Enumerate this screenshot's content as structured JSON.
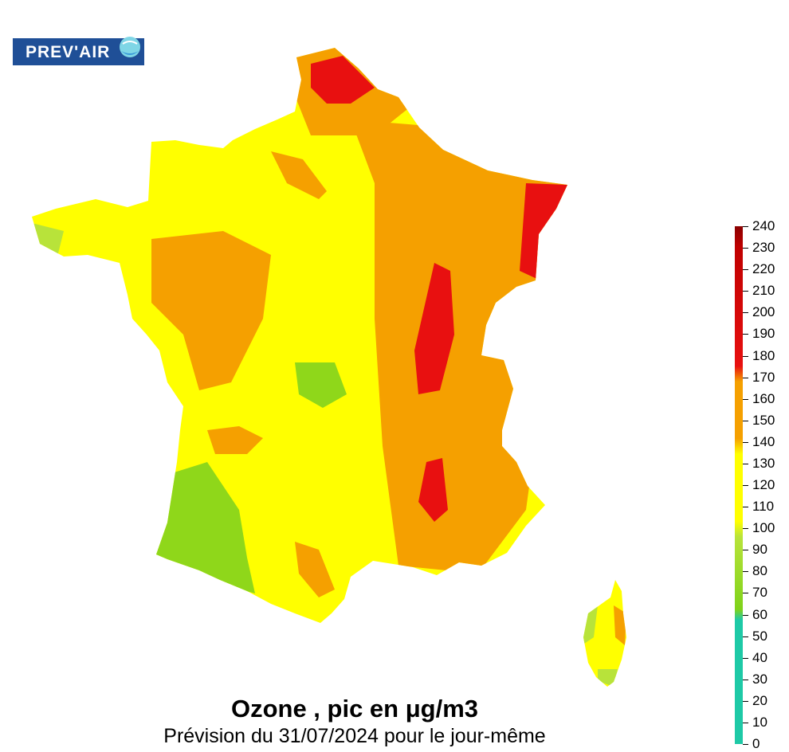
{
  "logo": {
    "text": "PREV'AIR"
  },
  "title": "Ozone , pic en μg/m3",
  "subtitle": "Prévision du 31/07/2024 pour le jour-même",
  "legend": {
    "min": 0,
    "max": 240,
    "tick_labels": [
      "240",
      "230",
      "220",
      "210",
      "200",
      "190",
      "180",
      "170",
      "160",
      "150",
      "140",
      "130",
      "120",
      "110",
      "100",
      "90",
      "80",
      "70",
      "60",
      "50",
      "40",
      "30",
      "20",
      "10",
      "0"
    ],
    "colors": {
      "teal": "#1ec9a6",
      "green": "#7fd21a",
      "yellow": "#ffff00",
      "orange": "#f5a000",
      "red": "#e81010",
      "darkred": "#b00000"
    }
  }
}
